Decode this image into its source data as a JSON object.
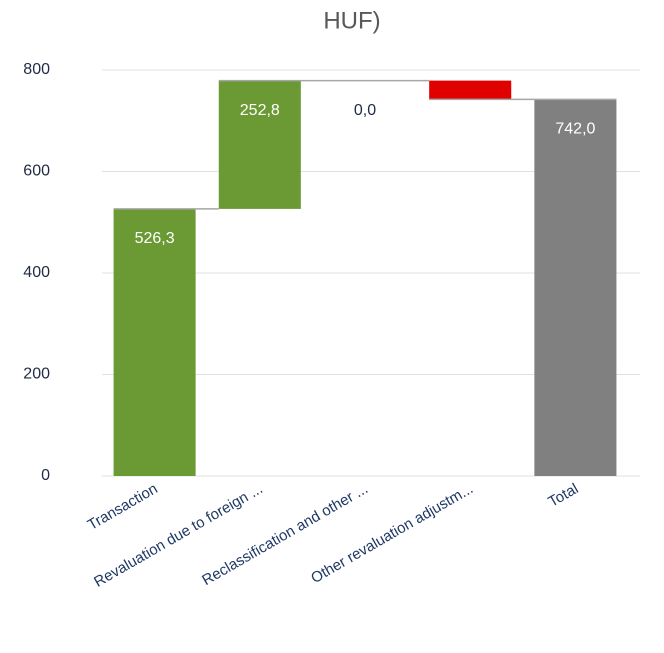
{
  "chart_data": {
    "type": "waterfall",
    "title": "HUF)",
    "categories": [
      "Transaction",
      "Revaluation due to foreign ...",
      "Reclassification and other ...",
      "Other revaluation adjustm...",
      "Total"
    ],
    "values": [
      526.3,
      252.8,
      0.0,
      -37.1,
      742.0
    ],
    "value_labels": [
      "526,3",
      "252,8",
      "0,0",
      null,
      "742,0"
    ],
    "totals": [
      false,
      false,
      false,
      false,
      true
    ],
    "colors": [
      "#6b9a35",
      "#6b9a35",
      "#6b9a35",
      "#e00000",
      "#808080"
    ],
    "ylim": [
      0,
      800
    ],
    "yticks": [
      0,
      200,
      400,
      600,
      800
    ],
    "grid": true
  }
}
